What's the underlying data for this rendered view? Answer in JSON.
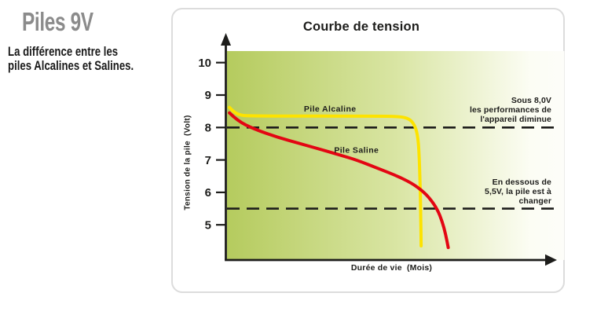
{
  "sidebar": {
    "heading": "Piles 9V",
    "heading_color": "#8b8b8b",
    "subheading": "La différence entre les\npiles Alcalines et Salines."
  },
  "chart_data": {
    "type": "line",
    "title": "Courbe de tension",
    "xlabel": "Durée de vie  (Mois)",
    "ylabel": "Tension de la pile  (Volt)",
    "y_ticks": [
      10,
      9,
      8,
      7,
      6,
      5
    ],
    "ylim": [
      3.9,
      10.4
    ],
    "x_range_months": [
      0,
      10
    ],
    "x_ticks_shown": false,
    "grid": false,
    "legend_position": "inline-labels",
    "axis_color": "#1d1d1b",
    "plot_gradient": [
      "#b5cb5e",
      "#d9e5a3",
      "#fcfdf4",
      "#fdfdf9"
    ],
    "series": [
      {
        "name": "Pile Alcaline",
        "color": "#fde300",
        "label_anchor": [
          3.1,
          8.49
        ],
        "points": [
          [
            0.05,
            8.62
          ],
          [
            0.18,
            8.48
          ],
          [
            0.35,
            8.39
          ],
          [
            0.6,
            8.35
          ],
          [
            4.7,
            8.35
          ],
          [
            5.2,
            8.34
          ],
          [
            5.5,
            8.27
          ],
          [
            5.65,
            8.1
          ],
          [
            5.75,
            7.8
          ],
          [
            5.8,
            7.2
          ],
          [
            5.83,
            6.2
          ],
          [
            5.85,
            5.2
          ],
          [
            5.86,
            4.35
          ]
        ]
      },
      {
        "name": "Pile Saline",
        "color": "#e30613",
        "label_anchor": [
          3.9,
          7.22
        ],
        "points": [
          [
            0.05,
            8.45
          ],
          [
            0.3,
            8.2
          ],
          [
            0.8,
            7.95
          ],
          [
            1.5,
            7.7
          ],
          [
            2.2,
            7.5
          ],
          [
            2.8,
            7.33
          ],
          [
            3.4,
            7.15
          ],
          [
            3.9,
            7.0
          ],
          [
            4.6,
            6.72
          ],
          [
            5.1,
            6.52
          ],
          [
            5.55,
            6.3
          ],
          [
            5.9,
            6.05
          ],
          [
            6.15,
            5.78
          ],
          [
            6.35,
            5.48
          ],
          [
            6.5,
            5.1
          ],
          [
            6.6,
            4.72
          ],
          [
            6.68,
            4.3
          ]
        ]
      }
    ],
    "thresholds": [
      {
        "volt": 8.0,
        "label": "Sous 8,0V\nles performances de\nl'appareil diminue"
      },
      {
        "volt": 5.5,
        "label": "En dessous de\n5,5V, la pile est à\nchanger"
      }
    ]
  }
}
